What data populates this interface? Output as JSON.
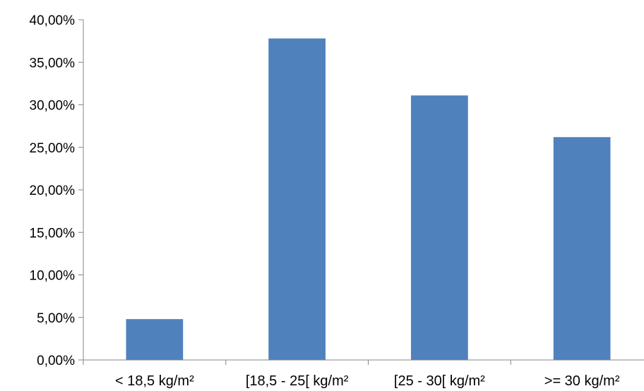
{
  "chart_data": {
    "type": "bar",
    "categories": [
      "< 18,5 kg/m²",
      "[18,5 - 25[ kg/m²",
      "[25 - 30[ kg/m²",
      ">= 30 kg/m²"
    ],
    "values": [
      4.8,
      37.8,
      31.1,
      26.2
    ],
    "title": "",
    "xlabel": "",
    "ylabel": "",
    "ylim": [
      0,
      40
    ],
    "yticks": [
      "0,00%",
      "5,00%",
      "10,00%",
      "15,00%",
      "20,00%",
      "25,00%",
      "30,00%",
      "35,00%",
      "40,00%"
    ],
    "grid": false,
    "legend": "none",
    "bar_color": "#4F81BD"
  }
}
